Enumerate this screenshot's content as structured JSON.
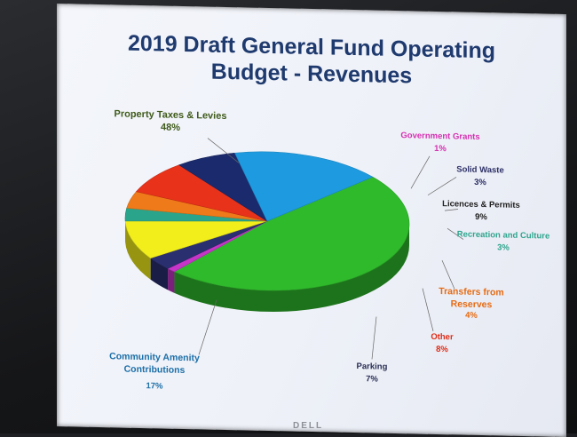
{
  "chart_data": {
    "type": "pie",
    "title": "2019 Draft General Fund Operating Budget - Revenues",
    "title_lines": [
      "2019 Draft General Fund Operating",
      "Budget - Revenues"
    ],
    "slices": [
      {
        "label": "Property Taxes & Levies",
        "value": 48,
        "pct": "48%",
        "color": "#2fba2b",
        "label_color": "#3f5a1a"
      },
      {
        "label": "Government Grants",
        "value": 1,
        "pct": "1%",
        "color": "#c535c8",
        "label_color": "#d62fb0"
      },
      {
        "label": "Solid Waste",
        "value": 3,
        "pct": "3%",
        "color": "#2a2f6f",
        "label_color": "#2d2f66"
      },
      {
        "label": "Licences & Permits",
        "value": 9,
        "pct": "9%",
        "color": "#f2ee1c",
        "label_color": "#1e1e1e"
      },
      {
        "label": "Recreation and Culture",
        "value": 3,
        "pct": "3%",
        "color": "#2aa58b",
        "label_color": "#2fa58e"
      },
      {
        "label": "Transfers from Reserves",
        "value": 4,
        "pct": "4%",
        "color": "#ef7a19",
        "label_color": "#e76b14"
      },
      {
        "label": "Other",
        "value": 8,
        "pct": "8%",
        "color": "#e8321a",
        "label_color": "#df2b16"
      },
      {
        "label": "Parking",
        "value": 7,
        "pct": "7%",
        "color": "#1b2a6c",
        "label_color": "#2a2f55"
      },
      {
        "label": "Community Amenity Contributions",
        "value": 17,
        "pct": "17%",
        "color": "#1e9be0",
        "label_color": "#1c6fa8"
      }
    ]
  },
  "footer": {
    "brand": "DELL"
  }
}
